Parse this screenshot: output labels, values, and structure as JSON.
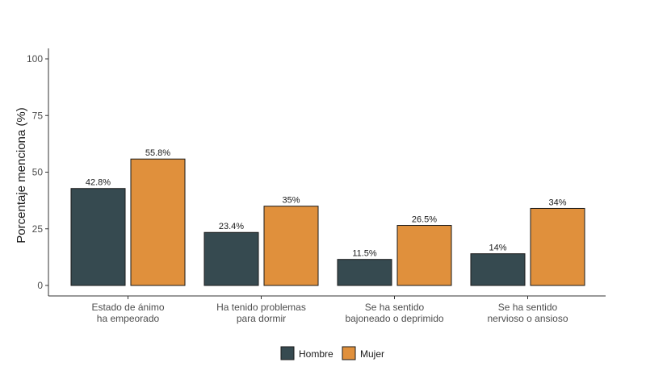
{
  "chart_data": {
    "type": "bar",
    "title": "",
    "xlabel": "",
    "ylabel": "Porcentaje menciona (%)",
    "ylim": [
      0,
      100
    ],
    "yticks": [
      0,
      25,
      50,
      75,
      100
    ],
    "grid": false,
    "legend_position": "bottom",
    "categories": [
      [
        "Estado de ánimo",
        "ha empeorado"
      ],
      [
        "Ha tenido problemas",
        "para dormir"
      ],
      [
        "Se ha sentido",
        "bajoneado o deprimido"
      ],
      [
        "Se ha sentido",
        "nervioso  o ansioso"
      ]
    ],
    "series": [
      {
        "name": "Hombre",
        "color": "#364a50",
        "values": [
          42.8,
          23.4,
          11.5,
          14
        ],
        "labels": [
          "42.8%",
          "23.4%",
          "11.5%",
          "14%"
        ]
      },
      {
        "name": "Mujer",
        "color": "#e0903c",
        "values": [
          55.8,
          35,
          26.5,
          34
        ],
        "labels": [
          "55.8%",
          "35%",
          "26.5%",
          "34%"
        ]
      }
    ]
  }
}
